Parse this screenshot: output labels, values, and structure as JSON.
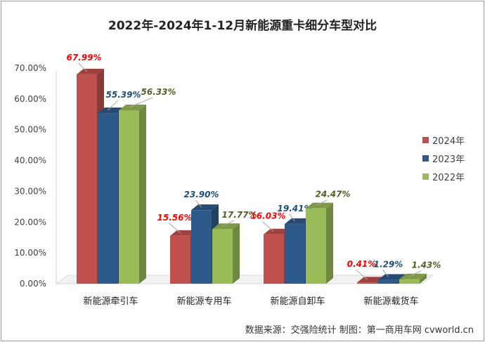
{
  "chart_data": {
    "type": "bar",
    "title": "2022年-2024年1-12月新能源重卡细分车型对比",
    "categories": [
      "新能源牵引车",
      "新能源专用车",
      "新能源自卸车",
      "新能源载货车"
    ],
    "series": [
      {
        "name": "2024年",
        "values": [
          67.99,
          15.56,
          16.03,
          0.41
        ],
        "labels": [
          "67.99%",
          "15.56%",
          "16.03%",
          "0.41%"
        ],
        "color": "#c0504d",
        "label_color": "#ff0000"
      },
      {
        "name": "2023年",
        "values": [
          55.39,
          23.9,
          19.41,
          1.29
        ],
        "labels": [
          "55.39%",
          "23.90%",
          "19.41%",
          "1.29%"
        ],
        "color": "#2e5a8a",
        "label_color": "#1f4e79"
      },
      {
        "name": "2022年",
        "values": [
          56.33,
          17.77,
          24.47,
          1.43
        ],
        "labels": [
          "56.33%",
          "17.77%",
          "24.47%",
          "1.43%"
        ],
        "color": "#9bbb59",
        "label_color": "#4f6228"
      }
    ],
    "yticks": [
      "0.00%",
      "10.00%",
      "20.00%",
      "30.00%",
      "40.00%",
      "50.00%",
      "60.00%",
      "70.00%"
    ],
    "ylim": [
      0,
      70
    ],
    "legend_position": "right",
    "grid": false
  },
  "source_note": "数据来源：交强险统计   制图：第一商用车网 cvworld.cn"
}
